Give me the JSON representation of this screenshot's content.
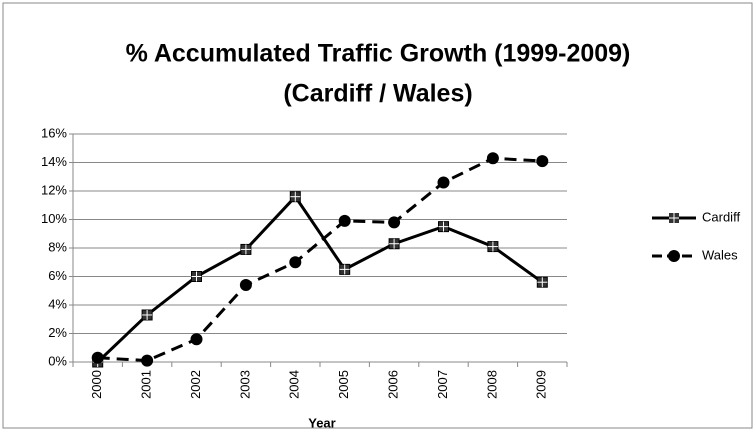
{
  "chart_data": {
    "type": "line",
    "title": "% Accumulated Traffic Growth (1999-2009)",
    "subtitle": "(Cardiff / Wales)",
    "x_label": "Year",
    "categories": [
      "2000",
      "2001",
      "2002",
      "2003",
      "2004",
      "2005",
      "2006",
      "2007",
      "2008",
      "2009"
    ],
    "series": [
      {
        "name": "Cardiff",
        "color": "#000000",
        "dash": "solid",
        "marker": "square",
        "values": [
          0,
          3.3,
          6.0,
          7.9,
          11.6,
          6.5,
          8.3,
          9.5,
          8.1,
          5.6
        ]
      },
      {
        "name": "Wales",
        "color": "#000000",
        "dash": "dashed",
        "marker": "circle",
        "values": [
          0.3,
          0.1,
          1.6,
          5.4,
          7.0,
          9.9,
          9.8,
          12.6,
          14.3,
          14.1
        ]
      }
    ],
    "ylim": [
      0,
      16
    ],
    "yticks": [
      {
        "value": 0,
        "label": "0%"
      },
      {
        "value": 2,
        "label": "2%"
      },
      {
        "value": 4,
        "label": "4%"
      },
      {
        "value": 6,
        "label": "6%"
      },
      {
        "value": 8,
        "label": "8%"
      },
      {
        "value": 10,
        "label": "10%"
      },
      {
        "value": 12,
        "label": "12%"
      },
      {
        "value": 14,
        "label": "14%"
      },
      {
        "value": 16,
        "label": "16%"
      }
    ],
    "grid": true,
    "legend": "right"
  }
}
